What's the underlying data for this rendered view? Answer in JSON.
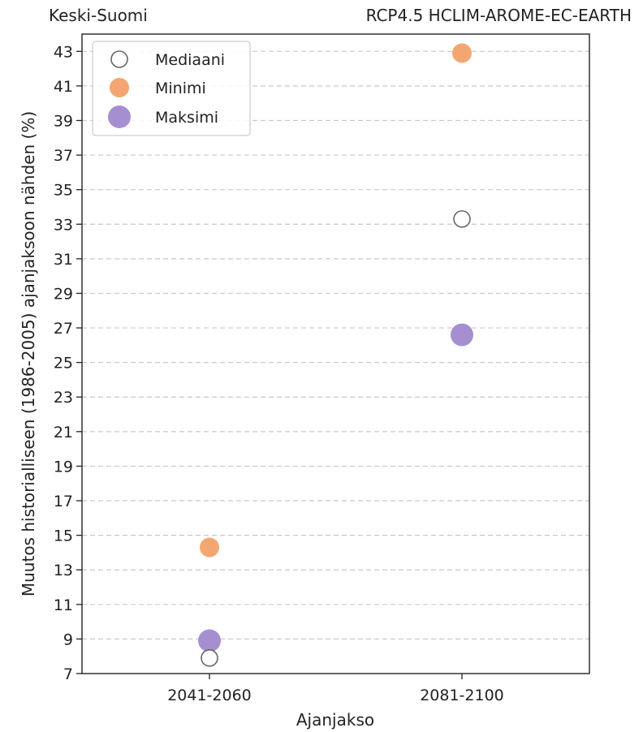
{
  "header": {
    "left_title": "Keski-Suomi",
    "right_title": "RCP4.5 HCLIM-AROME-EC-EARTH"
  },
  "colors": {
    "median_face": "#ffffff",
    "median_edge": "#666666",
    "minimum": "#f4a672",
    "maximum": "#a58fd0",
    "grid": "#c8c8c8",
    "axis": "#222222"
  },
  "chart_data": {
    "type": "scatter",
    "title": "",
    "xlabel": "Ajanjakso",
    "ylabel": "Muutos historialliseen (1986-2005) ajanjaksoon nähden (%)",
    "categories": [
      "2041-2060",
      "2081-2100"
    ],
    "ylim": [
      7,
      44
    ],
    "yticks": [
      7,
      9,
      11,
      13,
      15,
      17,
      19,
      21,
      23,
      25,
      27,
      29,
      31,
      33,
      35,
      37,
      39,
      41,
      43
    ],
    "grid": "horizontal dashed",
    "legend_position": "top-left",
    "series": [
      {
        "name": "Mediaani",
        "marker": "hollow-circle",
        "values": [
          7.9,
          33.3
        ]
      },
      {
        "name": "Minimi",
        "marker": "filled-circle",
        "values": [
          14.3,
          42.9
        ]
      },
      {
        "name": "Maksimi",
        "marker": "filled-circle-large",
        "values": [
          8.9,
          26.6
        ]
      }
    ]
  }
}
